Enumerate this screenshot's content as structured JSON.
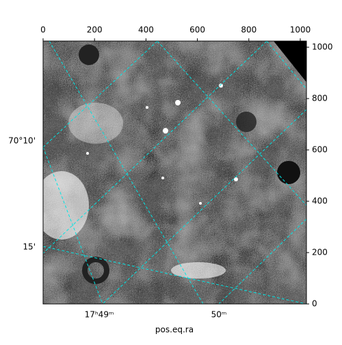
{
  "chart_data": {
    "type": "image",
    "xlabel": "pos.eq.ra",
    "xlim": [
      0,
      1024
    ],
    "xticks": [
      0,
      200,
      400,
      600,
      800,
      1000
    ],
    "ylim": [
      0,
      1024
    ],
    "yticks": [
      0,
      200,
      400,
      600,
      800,
      1000
    ],
    "ra_ticks": [
      "17ʰ49ᵐ",
      "50ᵐ"
    ],
    "dec_ticks": [
      "70°10'",
      "15'"
    ],
    "grid_color": "#00e5e5"
  }
}
